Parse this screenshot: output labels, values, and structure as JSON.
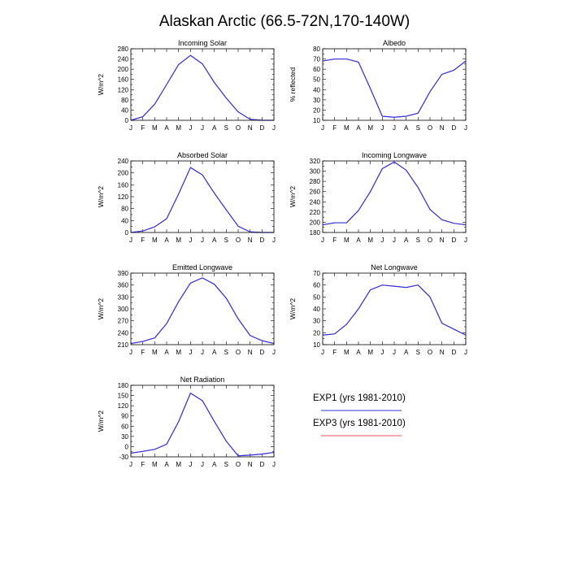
{
  "figure": {
    "title": "Alaskan Arctic (66.5-72N,170-140W)"
  },
  "legend": [
    {
      "label": "EXP1 (yrs 1981-2010)",
      "color": "#3333dd"
    },
    {
      "label": "EXP3 (yrs 1981-2010)",
      "color": "#ee5555"
    }
  ],
  "chart_data": [
    {
      "type": "line",
      "title": "Incoming Solar",
      "ylabel": "W/m^2",
      "categories": [
        "J",
        "F",
        "M",
        "A",
        "M",
        "J",
        "J",
        "A",
        "S",
        "O",
        "N",
        "D",
        "J"
      ],
      "ylim": [
        0,
        280
      ],
      "yticks": [
        0,
        40,
        80,
        120,
        160,
        200,
        240,
        280
      ],
      "series": [
        {
          "values": [
            0,
            14,
            63,
            140,
            218,
            254,
            221,
            148,
            87,
            33,
            4,
            0,
            0
          ],
          "color": "#3333dd"
        },
        {
          "values": [
            0,
            14,
            63,
            140,
            218,
            254,
            221,
            148,
            87,
            33,
            4,
            0,
            0
          ],
          "color": "#ee5555"
        }
      ]
    },
    {
      "type": "line",
      "title": "Albedo",
      "ylabel": "% reflected",
      "categories": [
        "J",
        "F",
        "M",
        "A",
        "M",
        "J",
        "J",
        "A",
        "S",
        "O",
        "N",
        "D",
        "J"
      ],
      "ylim": [
        10,
        80
      ],
      "yticks": [
        10,
        20,
        30,
        40,
        50,
        60,
        70,
        80
      ],
      "series": [
        {
          "values": [
            68,
            70,
            70,
            67,
            41,
            14,
            13,
            14,
            17,
            38,
            55,
            59,
            68
          ],
          "color": "#3333dd"
        },
        {
          "values": [
            68,
            70,
            70,
            67,
            41,
            14,
            13,
            14,
            17,
            38,
            55,
            59,
            68
          ],
          "color": "#ee5555"
        }
      ]
    },
    {
      "type": "line",
      "title": "Absorbed Solar",
      "ylabel": "W/m^2",
      "categories": [
        "J",
        "F",
        "M",
        "A",
        "M",
        "J",
        "J",
        "A",
        "S",
        "O",
        "N",
        "D",
        "J"
      ],
      "ylim": [
        0,
        240
      ],
      "yticks": [
        0,
        40,
        80,
        120,
        160,
        200,
        240
      ],
      "series": [
        {
          "values": [
            0,
            5,
            19,
            46,
            129,
            218,
            193,
            132,
            76,
            21,
            2,
            0,
            0
          ],
          "color": "#3333dd"
        },
        {
          "values": [
            0,
            5,
            19,
            46,
            129,
            218,
            193,
            132,
            76,
            21,
            2,
            0,
            0
          ],
          "color": "#ee5555"
        }
      ]
    },
    {
      "type": "line",
      "title": "Incoming Longwave",
      "ylabel": "W/m^2",
      "categories": [
        "J",
        "F",
        "M",
        "A",
        "M",
        "J",
        "J",
        "A",
        "S",
        "O",
        "N",
        "D",
        "J"
      ],
      "ylim": [
        180,
        320
      ],
      "yticks": [
        180,
        200,
        220,
        240,
        260,
        280,
        300,
        320
      ],
      "series": [
        {
          "values": [
            195,
            199,
            199,
            223,
            260,
            305,
            318,
            302,
            268,
            225,
            205,
            198,
            195
          ],
          "color": "#3333dd"
        },
        {
          "values": [
            195,
            199,
            199,
            223,
            260,
            305,
            318,
            302,
            268,
            225,
            205,
            198,
            195
          ],
          "color": "#ee5555"
        }
      ]
    },
    {
      "type": "line",
      "title": "Emitted Longwave",
      "ylabel": "W/m^2",
      "categories": [
        "J",
        "F",
        "M",
        "A",
        "M",
        "J",
        "J",
        "A",
        "S",
        "O",
        "N",
        "D",
        "J"
      ],
      "ylim": [
        210,
        390
      ],
      "yticks": [
        210,
        240,
        270,
        300,
        330,
        360,
        390
      ],
      "series": [
        {
          "values": [
            213,
            218,
            227,
            263,
            318,
            365,
            378,
            362,
            327,
            275,
            233,
            220,
            213
          ],
          "color": "#3333dd"
        },
        {
          "values": [
            213,
            218,
            227,
            263,
            318,
            365,
            378,
            362,
            327,
            275,
            233,
            220,
            213
          ],
          "color": "#ee5555"
        }
      ]
    },
    {
      "type": "line",
      "title": "Net Longwave",
      "ylabel": "W/m^2",
      "categories": [
        "J",
        "F",
        "M",
        "A",
        "M",
        "J",
        "J",
        "A",
        "S",
        "O",
        "N",
        "D",
        "J"
      ],
      "ylim": [
        10,
        70
      ],
      "yticks": [
        10,
        20,
        30,
        40,
        50,
        60,
        70
      ],
      "series": [
        {
          "values": [
            18,
            19,
            27,
            40,
            56,
            60,
            59,
            58,
            60,
            50,
            28,
            23,
            18
          ],
          "color": "#3333dd"
        },
        {
          "values": [
            18,
            19,
            27,
            40,
            56,
            60,
            59,
            58,
            60,
            50,
            28,
            23,
            18
          ],
          "color": "#ee5555"
        }
      ]
    },
    {
      "type": "line",
      "title": "Net Radiation",
      "ylabel": "W/m^2",
      "categories": [
        "J",
        "F",
        "M",
        "A",
        "M",
        "J",
        "J",
        "A",
        "S",
        "O",
        "N",
        "D",
        "J"
      ],
      "ylim": [
        -30,
        180
      ],
      "yticks": [
        -30,
        0,
        30,
        60,
        90,
        120,
        150,
        180
      ],
      "series": [
        {
          "values": [
            -19,
            -14,
            -8,
            7,
            73,
            157,
            135,
            74,
            16,
            -27,
            -25,
            -22,
            -17
          ],
          "color": "#3333dd"
        },
        {
          "values": [
            -19,
            -14,
            -8,
            7,
            73,
            157,
            135,
            74,
            16,
            -27,
            -25,
            -22,
            -17
          ],
          "color": "#ee5555"
        }
      ]
    }
  ]
}
